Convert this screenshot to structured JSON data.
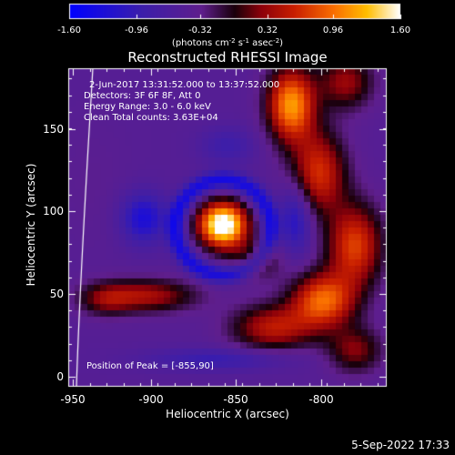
{
  "colorbar": {
    "tick_labels": [
      "-1.60",
      "-0.96",
      "-0.32",
      "0.32",
      "0.96",
      "1.60"
    ],
    "ticks": [
      -1.6,
      -0.96,
      -0.32,
      0.32,
      0.96,
      1.6
    ],
    "units_prefix": "(photons cm",
    "units_exp1": "-2",
    "units_mid1": " s",
    "units_exp2": "-1",
    "units_mid2": " asec",
    "units_exp3": "-2",
    "units_suffix": ")",
    "range": [
      -1.6,
      1.6
    ]
  },
  "plot": {
    "title": "Reconstructed RHESSI Image",
    "xlabel": "Heliocentric X (arcsec)",
    "ylabel": "Heliocentric Y (arcsec)",
    "x_tick_labels": [
      "-950",
      "-900",
      "-850",
      "-800"
    ],
    "x_ticks": [
      -950,
      -900,
      -850,
      -800
    ],
    "y_tick_labels": [
      "0",
      "50",
      "100",
      "150"
    ],
    "y_ticks": [
      0,
      50,
      100,
      150
    ],
    "xlim": [
      -950,
      -850
    ],
    "ylim": [
      -5,
      185
    ],
    "info_lines": [
      " 2-Jun-2017 13:31:52.000 to 13:37:52.000",
      "Detectors: 3F 6F 8F, Att 0",
      "Energy Range: 3.0 - 6.0 keV",
      "Clean     Total counts: 3.63E+04"
    ],
    "peak_text": "Position of Peak = [-855,90]"
  },
  "timestamp": "5-Sep-2022 17:33"
}
